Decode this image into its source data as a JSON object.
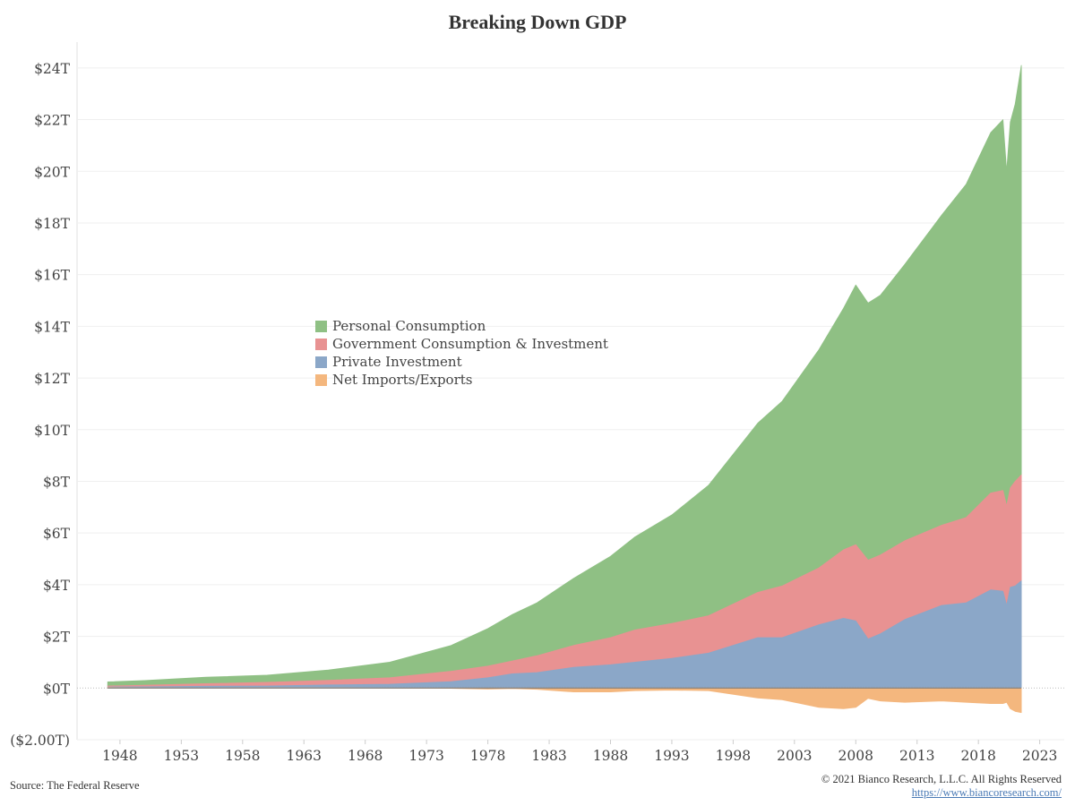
{
  "chart_data": {
    "type": "area",
    "title": "Breaking Down GDP",
    "ylim": [
      -2,
      25
    ],
    "xlim": [
      1944.5,
      2025
    ],
    "y_ticks": [
      {
        "value": 24,
        "label": "$24T"
      },
      {
        "value": 22,
        "label": "$22T"
      },
      {
        "value": 20,
        "label": "$20T"
      },
      {
        "value": 18,
        "label": "$18T"
      },
      {
        "value": 16,
        "label": "$16T"
      },
      {
        "value": 14,
        "label": "$14T"
      },
      {
        "value": 12,
        "label": "$12T"
      },
      {
        "value": 10,
        "label": "$10T"
      },
      {
        "value": 8,
        "label": "$8T"
      },
      {
        "value": 6,
        "label": "$6T"
      },
      {
        "value": 4,
        "label": "$4T"
      },
      {
        "value": 2,
        "label": "$2T"
      },
      {
        "value": 0,
        "label": "$0T"
      },
      {
        "value": -2,
        "label": "($2.00T)"
      }
    ],
    "x_ticks": [
      {
        "value": 1948,
        "label": "1948"
      },
      {
        "value": 1953,
        "label": "1953"
      },
      {
        "value": 1958,
        "label": "1958"
      },
      {
        "value": 1963,
        "label": "1963"
      },
      {
        "value": 1968,
        "label": "1968"
      },
      {
        "value": 1973,
        "label": "1973"
      },
      {
        "value": 1978,
        "label": "1978"
      },
      {
        "value": 1983,
        "label": "1983"
      },
      {
        "value": 1988,
        "label": "1988"
      },
      {
        "value": 1993,
        "label": "1993"
      },
      {
        "value": 1998,
        "label": "1998"
      },
      {
        "value": 2003,
        "label": "2003"
      },
      {
        "value": 2008,
        "label": "2008"
      },
      {
        "value": 2013,
        "label": "2013"
      },
      {
        "value": 2018,
        "label": "2018"
      },
      {
        "value": 2023,
        "label": "2023"
      }
    ],
    "x": [
      1947,
      1950,
      1955,
      1960,
      1965,
      1970,
      1975,
      1978,
      1980,
      1982,
      1985,
      1988,
      1990,
      1993,
      1996,
      2000,
      2002,
      2005,
      2007,
      2008,
      2009,
      2010,
      2012,
      2015,
      2017,
      2019,
      2020,
      2020.3,
      2020.6,
      2021,
      2021.5
    ],
    "series": [
      {
        "name": "Personal Consumption",
        "color": "#8fc084",
        "stack_top": [
          0.24,
          0.29,
          0.42,
          0.5,
          0.7,
          1.0,
          1.65,
          2.3,
          2.85,
          3.3,
          4.25,
          5.1,
          5.85,
          6.7,
          7.85,
          10.25,
          11.1,
          13.1,
          14.7,
          15.6,
          14.9,
          15.2,
          16.4,
          18.3,
          19.5,
          21.5,
          22.0,
          20.0,
          21.9,
          22.6,
          24.1
        ]
      },
      {
        "name": "Government Consumption & Investment",
        "color": "#e89292",
        "stack_top": [
          0.08,
          0.11,
          0.17,
          0.22,
          0.3,
          0.4,
          0.65,
          0.85,
          1.05,
          1.25,
          1.65,
          1.95,
          2.25,
          2.5,
          2.8,
          3.7,
          3.95,
          4.65,
          5.35,
          5.55,
          4.95,
          5.15,
          5.7,
          6.3,
          6.6,
          7.55,
          7.65,
          7.05,
          7.75,
          8.0,
          8.25
        ]
      },
      {
        "name": "Private Investment",
        "color": "#8ba7c8",
        "stack_top": [
          0.04,
          0.05,
          0.07,
          0.08,
          0.12,
          0.15,
          0.25,
          0.4,
          0.55,
          0.6,
          0.8,
          0.9,
          1.0,
          1.15,
          1.35,
          1.95,
          1.95,
          2.45,
          2.7,
          2.6,
          1.9,
          2.1,
          2.65,
          3.2,
          3.3,
          3.8,
          3.75,
          3.2,
          3.9,
          3.95,
          4.15
        ]
      },
      {
        "name": "Net Imports/Exports",
        "color": "#f4b77e",
        "stack_top": [
          0.02,
          0.01,
          0.0,
          0.01,
          0.01,
          0.0,
          -0.01,
          -0.04,
          -0.02,
          -0.05,
          -0.15,
          -0.15,
          -0.1,
          -0.08,
          -0.1,
          -0.38,
          -0.45,
          -0.75,
          -0.8,
          -0.75,
          -0.4,
          -0.5,
          -0.55,
          -0.5,
          -0.55,
          -0.6,
          -0.6,
          -0.55,
          -0.8,
          -0.9,
          -0.95
        ]
      }
    ]
  },
  "legend": [
    {
      "label": "Personal Consumption",
      "color": "#8fc084"
    },
    {
      "label": "Government Consumption & Investment",
      "color": "#e89292"
    },
    {
      "label": "Private Investment",
      "color": "#8ba7c8"
    },
    {
      "label": "Net Imports/Exports",
      "color": "#f4b77e"
    }
  ],
  "footer": {
    "source": "Source: The Federal Reserve",
    "copyright": "© 2021 Bianco Research, L.L.C. All Rights Reserved",
    "link": "https://www.biancoresearch.com/"
  }
}
